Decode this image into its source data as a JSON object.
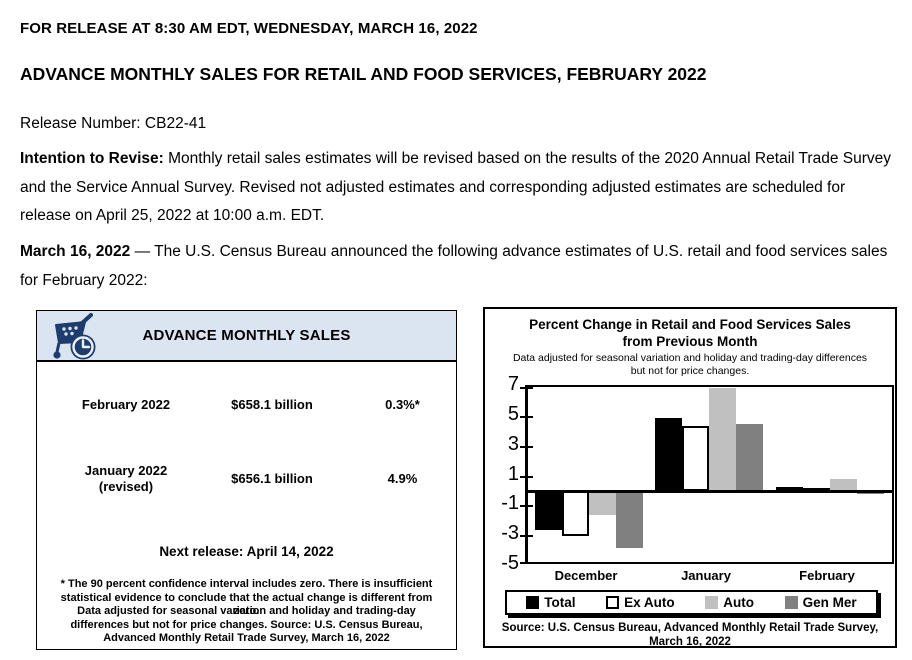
{
  "page": {
    "release_line": "FOR RELEASE AT 8:30 AM EDT, WEDNESDAY, MARCH 16, 2022",
    "title": "ADVANCE MONTHLY SALES FOR RETAIL AND FOOD SERVICES, FEBRUARY 2022",
    "release_number": "Release Number: CB22-41",
    "intention_label": "Intention to Revise:",
    "intention_text": " Monthly retail sales estimates will be revised based on the results of the 2020 Annual Retail Trade Survey and the Service Annual Survey. Revised not adjusted estimates and corresponding adjusted estimates are scheduled for release on April 25, 2022 at 10:00 a.m. EDT.",
    "announce_label": "March 16, 2022",
    "announce_text": " — The U.S. Census Bureau announced the following advance estimates of U.S. retail and food services sales for February 2022:"
  },
  "sales_box": {
    "header": "ADVANCE MONTHLY SALES",
    "icon": "cart-clock-icon",
    "rows": [
      {
        "label": "February 2022",
        "label2": "",
        "value": "$658.1 billion",
        "pct": "0.3%*"
      },
      {
        "label": "January 2022",
        "label2": "(revised)",
        "value": "$656.1 billion",
        "pct": "4.9%"
      }
    ],
    "next_release": "Next release: April 14, 2022",
    "footnote1": "* The 90 percent confidence interval includes zero. There is insufficient statistical evidence to conclude that the actual change is different from zero.",
    "footnote2": "Data adjusted for seasonal variation and holiday and trading-day differences but not for price changes. Source: U.S. Census Bureau, Advanced Monthly Retail Trade Survey, March 16, 2022"
  },
  "chart_data": {
    "type": "bar",
    "title": "Percent Change in Retail and Food Services Sales from Previous Month",
    "subtitle": "Data adjusted for seasonal variation and holiday and trading-day differences but not for price changes.",
    "categories": [
      "December",
      "January",
      "February"
    ],
    "series": [
      {
        "name": "Total",
        "color": "#000000",
        "values": [
          -2.6,
          4.9,
          0.3
        ]
      },
      {
        "name": "Ex Auto",
        "color": "#ffffff",
        "border": "#000000",
        "values": [
          -3.0,
          4.4,
          0.2
        ]
      },
      {
        "name": "Auto",
        "color": "#c0c0c0",
        "values": [
          -1.6,
          6.9,
          0.8
        ]
      },
      {
        "name": "Gen Mer",
        "color": "#808080",
        "values": [
          -3.8,
          4.5,
          -0.2
        ]
      }
    ],
    "ylim": [
      -5,
      7
    ],
    "yticks": [
      7,
      5,
      3,
      1,
      -1,
      -3,
      -5
    ],
    "grid": false,
    "legend_position": "bottom",
    "source_lines": [
      "Source: U.S. Census Bureau, Advanced Monthly Retail Trade Survey,",
      "March 16, 2022"
    ],
    "source": "Source: U.S. Census Bureau, Advanced Monthly Retail Trade Survey, March 16, 2022"
  },
  "colors": {
    "sales_header_bg": "#dbe5f1",
    "icon_navy": "#1f3c6e",
    "box_border": "#000000"
  }
}
